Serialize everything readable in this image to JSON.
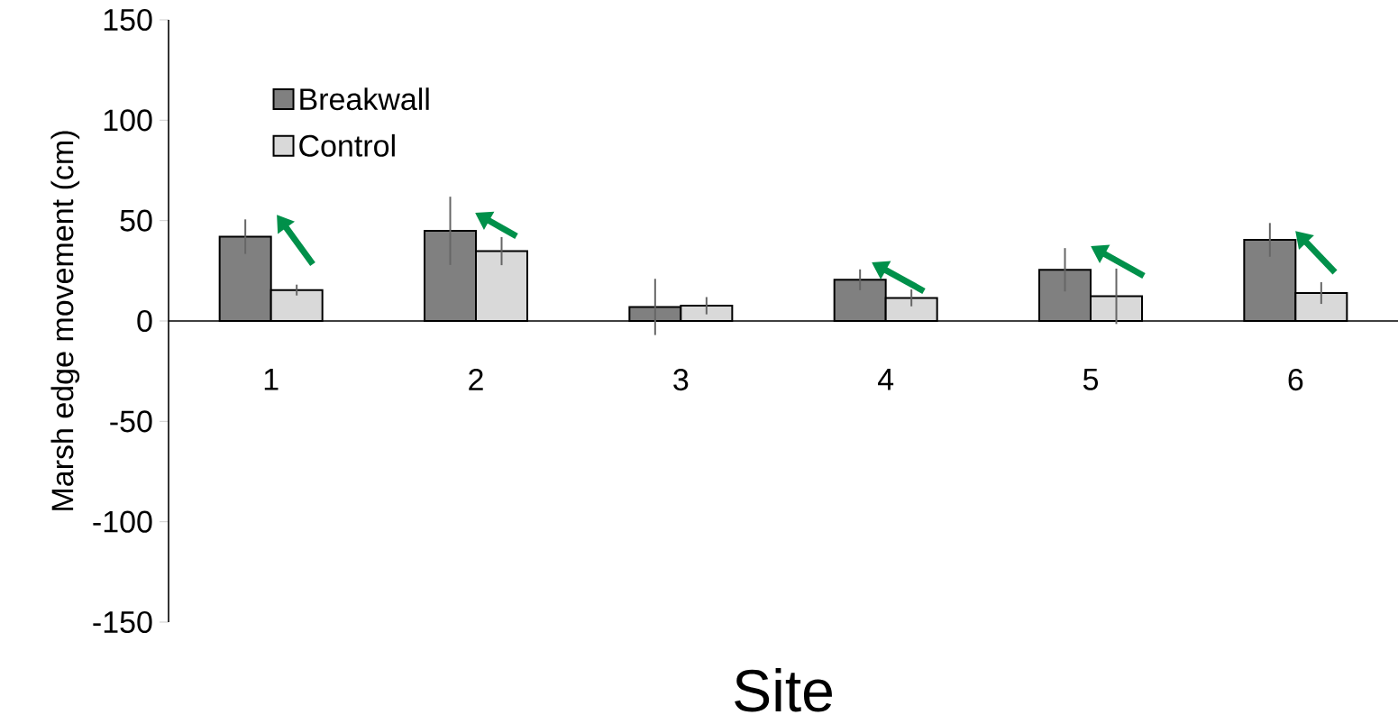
{
  "chart_data": {
    "type": "bar",
    "xlabel": "Site",
    "ylabel": "Marsh edge movement (cm)",
    "categories": [
      "1",
      "2",
      "3",
      "4",
      "5",
      "6"
    ],
    "series": [
      {
        "name": "Breakwall",
        "color": "#808080",
        "values": [
          42.0,
          44.9,
          7.0,
          20.5,
          25.5,
          40.4
        ],
        "errors": [
          8.6,
          17,
          14,
          5.2,
          10.8,
          8.4
        ]
      },
      {
        "name": "Control",
        "color": "#d9d9d9",
        "values": [
          15.4,
          34.8,
          7.6,
          11.5,
          12.3,
          13.9
        ],
        "errors": [
          2.7,
          7,
          4.3,
          4.2,
          13.8,
          5.4
        ]
      }
    ],
    "ylim": [
      -150,
      150
    ],
    "yticks": [
      -150,
      -100,
      -50,
      0,
      50,
      100,
      150
    ],
    "legend": "top left"
  }
}
